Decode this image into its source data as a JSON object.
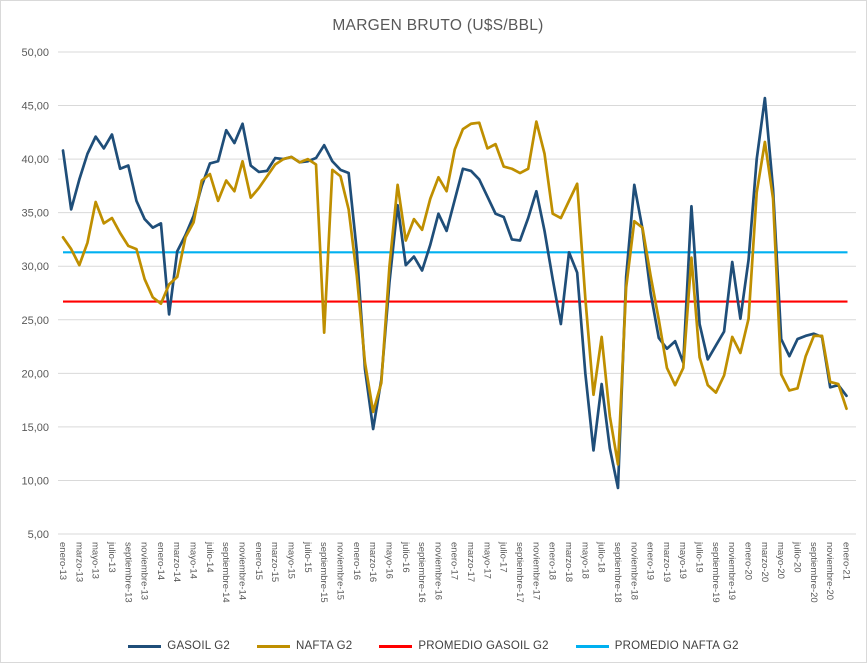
{
  "title": "MARGEN BRUTO (U$S/BBL)",
  "colors": {
    "gasoil": "#1F4E79",
    "nafta": "#BF8F00",
    "promedio_gasoil": "#FF0000",
    "promedio_nafta": "#00B0F0",
    "gridline": "#D9D9D9",
    "axis_text": "#595959",
    "title_text": "#595959",
    "legend_text": "#404040"
  },
  "chart_data": {
    "type": "line",
    "title": "MARGEN BRUTO (U$S/BBL)",
    "x_unit": "month",
    "x_start": "enero-13",
    "x_end": "enero-21",
    "points_per_tick": 2,
    "x_tick_labels": [
      "enero-13",
      "marzo-13",
      "mayo-13",
      "julio-13",
      "septiembre-13",
      "noviembre-13",
      "enero-14",
      "marzo-14",
      "mayo-14",
      "julio-14",
      "septiembre-14",
      "noviembre-14",
      "enero-15",
      "marzo-15",
      "mayo-15",
      "julio-15",
      "septiembre-15",
      "noviembre-15",
      "enero-16",
      "marzo-16",
      "mayo-16",
      "julio-16",
      "septiembre-16",
      "noviembre-16",
      "enero-17",
      "marzo-17",
      "mayo-17",
      "julio-17",
      "septiembre-17",
      "noviembre-17",
      "enero-18",
      "marzo-18",
      "mayo-18",
      "julio-18",
      "septiembre-18",
      "noviembre-18",
      "enero-19",
      "marzo-19",
      "mayo-19",
      "julio-19",
      "septiembre-19",
      "noviembre-19",
      "enero-20",
      "marzo-20",
      "mayo-20",
      "julio-20",
      "septiembre-20",
      "noviembre-20",
      "enero-21"
    ],
    "ylim": [
      5,
      50
    ],
    "y_tick_step": 5,
    "y_tick_labels": [
      "50,00",
      "45,00",
      "40,00",
      "35,00",
      "30,00",
      "25,00",
      "20,00",
      "15,00",
      "10,00",
      "5,00"
    ],
    "grid": "horizontal",
    "legend_position": "bottom",
    "series": [
      {
        "name": "GASOIL G2",
        "color": "#1F4E79",
        "values": [
          40.8,
          35.3,
          38.1,
          40.5,
          42.1,
          41.0,
          42.3,
          39.1,
          39.4,
          36.1,
          34.4,
          33.6,
          34.0,
          25.5,
          31.4,
          32.9,
          34.7,
          37.5,
          39.6,
          39.8,
          42.7,
          41.5,
          43.3,
          39.4,
          38.8,
          38.9,
          40.1,
          40.0,
          40.2,
          39.7,
          39.8,
          40.1,
          41.3,
          39.8,
          39.0,
          38.7,
          31.4,
          20.4,
          14.8,
          19.4,
          28.5,
          35.7,
          30.1,
          30.9,
          29.6,
          32.0,
          34.9,
          33.3,
          36.2,
          39.1,
          38.9,
          38.1,
          36.5,
          34.9,
          34.6,
          32.5,
          32.4,
          34.5,
          37.0,
          33.3,
          28.8,
          24.6,
          31.3,
          29.4,
          20.0,
          12.8,
          19.0,
          13.0,
          9.3,
          29.0,
          37.6,
          33.5,
          27.5,
          23.3,
          22.3,
          23.0,
          21.0,
          35.6,
          24.6,
          21.3,
          22.6,
          23.9,
          30.4,
          25.1,
          30.6,
          40.0,
          45.7,
          37.2,
          23.2,
          21.6,
          23.2,
          23.5,
          23.7,
          23.4,
          18.7,
          18.9,
          17.9
        ]
      },
      {
        "name": "NAFTA G2",
        "color": "#BF8F00",
        "values": [
          32.7,
          31.6,
          30.1,
          32.2,
          36.0,
          34.0,
          34.5,
          33.1,
          31.9,
          31.6,
          28.8,
          27.1,
          26.5,
          28.3,
          29.0,
          32.7,
          34.1,
          38.0,
          38.6,
          36.1,
          38.0,
          37.0,
          39.8,
          36.4,
          37.3,
          38.4,
          39.5,
          40.0,
          40.2,
          39.7,
          40.0,
          39.5,
          23.8,
          39.0,
          38.4,
          35.3,
          29.1,
          21.0,
          16.4,
          19.1,
          30.0,
          37.6,
          32.4,
          34.4,
          33.4,
          36.3,
          38.3,
          37.0,
          40.9,
          42.8,
          43.3,
          43.4,
          41.0,
          41.4,
          39.3,
          39.1,
          38.7,
          39.1,
          43.5,
          40.5,
          34.9,
          34.5,
          36.1,
          37.7,
          27.0,
          18.0,
          23.4,
          16.0,
          11.5,
          28.0,
          34.2,
          33.6,
          29.1,
          25.0,
          20.5,
          18.9,
          20.5,
          30.8,
          21.5,
          18.9,
          18.2,
          19.8,
          23.4,
          21.9,
          25.1,
          36.9,
          41.6,
          36.3,
          19.9,
          18.4,
          18.6,
          21.6,
          23.5,
          23.5,
          19.2,
          19.0,
          16.7
        ]
      },
      {
        "name": "PROMEDIO GASOIL G2",
        "color": "#FF0000",
        "constant_value": 26.7
      },
      {
        "name": "PROMEDIO NAFTA G2",
        "color": "#00B0F0",
        "constant_value": 31.3
      }
    ]
  },
  "legend": {
    "items": [
      {
        "label": "GASOIL G2",
        "color": "#1F4E79"
      },
      {
        "label": "NAFTA G2",
        "color": "#BF8F00"
      },
      {
        "label": "PROMEDIO GASOIL G2",
        "color": "#FF0000"
      },
      {
        "label": "PROMEDIO NAFTA G2",
        "color": "#00B0F0"
      }
    ]
  }
}
